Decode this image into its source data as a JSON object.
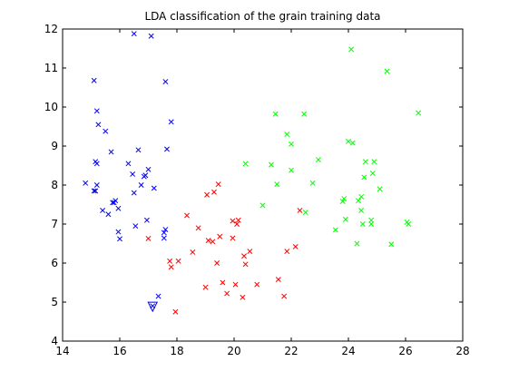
{
  "chart_data": {
    "type": "scatter",
    "title": "LDA classification of the grain training data",
    "xlabel": "",
    "ylabel": "",
    "xlim": [
      14,
      28
    ],
    "ylim": [
      4,
      12
    ],
    "xticks": [
      14,
      16,
      18,
      20,
      22,
      24,
      26,
      28
    ],
    "yticks": [
      4,
      5,
      6,
      7,
      8,
      9,
      10,
      11,
      12
    ],
    "grid": false,
    "marker": "x",
    "series": [
      {
        "color": "#0000ff",
        "points": [
          [
            14.8,
            8.05
          ],
          [
            15.1,
            10.68
          ],
          [
            15.2,
            9.9
          ],
          [
            15.25,
            9.55
          ],
          [
            15.5,
            9.38
          ],
          [
            15.15,
            8.6
          ],
          [
            15.2,
            8.55
          ],
          [
            15.1,
            7.85
          ],
          [
            15.15,
            7.85
          ],
          [
            15.2,
            8.0
          ],
          [
            15.4,
            7.35
          ],
          [
            15.6,
            7.25
          ],
          [
            15.75,
            7.55
          ],
          [
            15.8,
            7.55
          ],
          [
            15.85,
            7.6
          ],
          [
            15.7,
            8.85
          ],
          [
            15.95,
            7.4
          ],
          [
            15.95,
            6.8
          ],
          [
            16.0,
            6.62
          ],
          [
            16.3,
            8.55
          ],
          [
            16.45,
            8.28
          ],
          [
            16.5,
            7.8
          ],
          [
            16.55,
            6.95
          ],
          [
            16.65,
            8.9
          ],
          [
            16.75,
            8.0
          ],
          [
            16.85,
            8.22
          ],
          [
            16.9,
            8.25
          ],
          [
            16.95,
            7.1
          ],
          [
            17.0,
            8.4
          ],
          [
            17.2,
            7.92
          ],
          [
            16.5,
            11.88
          ],
          [
            17.1,
            11.82
          ],
          [
            17.6,
            10.65
          ],
          [
            17.8,
            9.62
          ],
          [
            17.65,
            8.92
          ],
          [
            17.55,
            6.78
          ],
          [
            17.6,
            6.86
          ],
          [
            17.55,
            6.64
          ],
          [
            17.35,
            5.15
          ],
          [
            17.15,
            4.9
          ]
        ]
      },
      {
        "color": "#ff0000",
        "points": [
          [
            17.0,
            6.63
          ],
          [
            17.75,
            6.05
          ],
          [
            17.8,
            5.9
          ],
          [
            18.05,
            6.05
          ],
          [
            17.95,
            4.75
          ],
          [
            18.35,
            7.22
          ],
          [
            18.55,
            6.28
          ],
          [
            18.75,
            6.9
          ],
          [
            19.0,
            5.38
          ],
          [
            19.05,
            7.75
          ],
          [
            19.1,
            6.58
          ],
          [
            19.25,
            6.55
          ],
          [
            19.3,
            7.82
          ],
          [
            19.45,
            8.02
          ],
          [
            19.4,
            6.0
          ],
          [
            19.5,
            6.68
          ],
          [
            19.6,
            5.5
          ],
          [
            19.75,
            5.22
          ],
          [
            19.95,
            6.64
          ],
          [
            19.95,
            7.08
          ],
          [
            20.05,
            5.45
          ],
          [
            20.1,
            7.0
          ],
          [
            20.15,
            7.1
          ],
          [
            20.3,
            5.12
          ],
          [
            20.35,
            6.18
          ],
          [
            20.4,
            5.97
          ],
          [
            20.55,
            6.3
          ],
          [
            20.8,
            5.45
          ],
          [
            21.55,
            5.58
          ],
          [
            21.75,
            5.15
          ],
          [
            21.85,
            6.3
          ],
          [
            22.15,
            6.42
          ],
          [
            22.3,
            7.35
          ]
        ]
      },
      {
        "color": "#00ff00",
        "points": [
          [
            20.4,
            8.55
          ],
          [
            21.0,
            7.48
          ],
          [
            21.3,
            8.52
          ],
          [
            21.45,
            9.82
          ],
          [
            21.5,
            8.02
          ],
          [
            21.85,
            9.3
          ],
          [
            22.0,
            9.05
          ],
          [
            22.0,
            8.38
          ],
          [
            22.45,
            9.82
          ],
          [
            22.5,
            7.3
          ],
          [
            22.75,
            8.05
          ],
          [
            22.95,
            8.65
          ],
          [
            23.55,
            6.85
          ],
          [
            23.8,
            7.58
          ],
          [
            23.85,
            7.65
          ],
          [
            23.9,
            7.12
          ],
          [
            24.0,
            9.12
          ],
          [
            24.15,
            9.08
          ],
          [
            24.1,
            11.48
          ],
          [
            24.3,
            6.5
          ],
          [
            24.35,
            7.6
          ],
          [
            24.45,
            7.35
          ],
          [
            24.45,
            7.7
          ],
          [
            24.5,
            7.0
          ],
          [
            24.55,
            8.2
          ],
          [
            24.6,
            8.6
          ],
          [
            24.8,
            7.1
          ],
          [
            24.8,
            7.0
          ],
          [
            24.85,
            8.3
          ],
          [
            24.9,
            8.6
          ],
          [
            25.1,
            7.9
          ],
          [
            25.35,
            10.92
          ],
          [
            25.5,
            6.48
          ],
          [
            26.05,
            7.05
          ],
          [
            26.1,
            7.0
          ],
          [
            26.45,
            9.85
          ]
        ]
      }
    ],
    "highlight": {
      "x": 17.15,
      "y": 4.88,
      "marker": "triangle-down",
      "color": "#0000ff"
    }
  }
}
